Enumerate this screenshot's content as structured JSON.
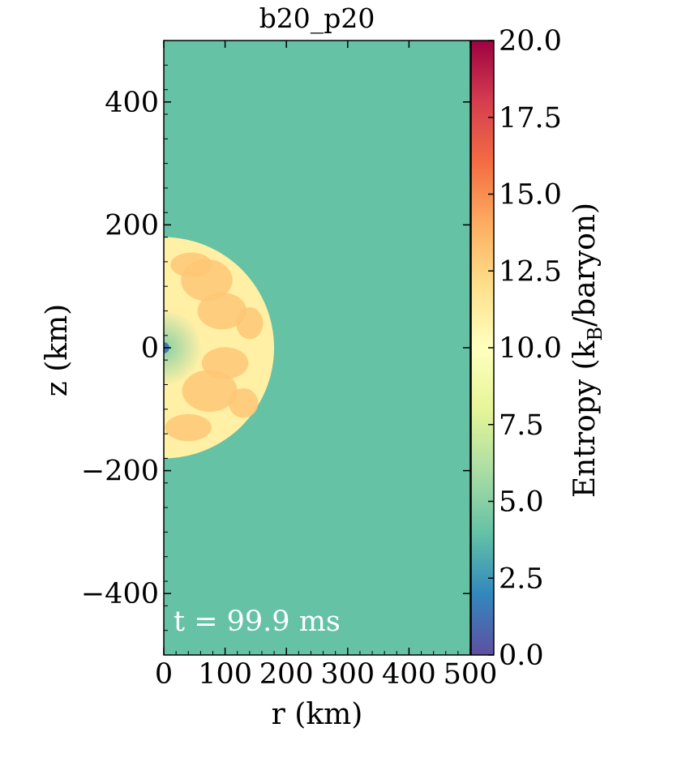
{
  "chart_data": {
    "type": "heatmap",
    "title": "b20_p20",
    "xlabel": "r  (km)",
    "ylabel": "z  (km)",
    "xlim": [
      0,
      500
    ],
    "ylim": [
      -500,
      500
    ],
    "xticks": [
      0,
      100,
      200,
      300,
      400,
      500
    ],
    "xtick_labels": [
      "0",
      "100",
      "200",
      "300",
      "400",
      "500"
    ],
    "yticks": [
      400,
      200,
      0,
      -200,
      -400
    ],
    "ytick_labels": [
      "400",
      "200",
      "0",
      "−200",
      "−400"
    ],
    "annotation": "t = 99.9 ms",
    "colorbar": {
      "label": "Entropy  (k_B/baryon)",
      "label_main": "Entropy  (k",
      "label_sub": "B",
      "label_end": "/baryon)",
      "range": [
        0.0,
        20.0
      ],
      "ticks": [
        0.0,
        2.5,
        5.0,
        7.5,
        10.0,
        12.5,
        15.0,
        17.5,
        20.0
      ],
      "tick_labels": [
        "0.0",
        "2.5",
        "5.0",
        "7.5",
        "10.0",
        "12.5",
        "15.0",
        "17.5",
        "20.0"
      ],
      "colormap": "Spectral_r",
      "colormap_stops": [
        "#5e4fa2",
        "#3288bd",
        "#66c2a5",
        "#abdda4",
        "#e6f598",
        "#ffffbf",
        "#fee08b",
        "#fdae61",
        "#f46d43",
        "#d53e4f",
        "#9e0142"
      ]
    },
    "fields": {
      "background_entropy": 4.0,
      "shock_radius_km": 180,
      "shock_entropy": 11.0,
      "plume_entropy": 13.0,
      "core_entropy": 5.0,
      "center_entropy": 1.5
    }
  }
}
